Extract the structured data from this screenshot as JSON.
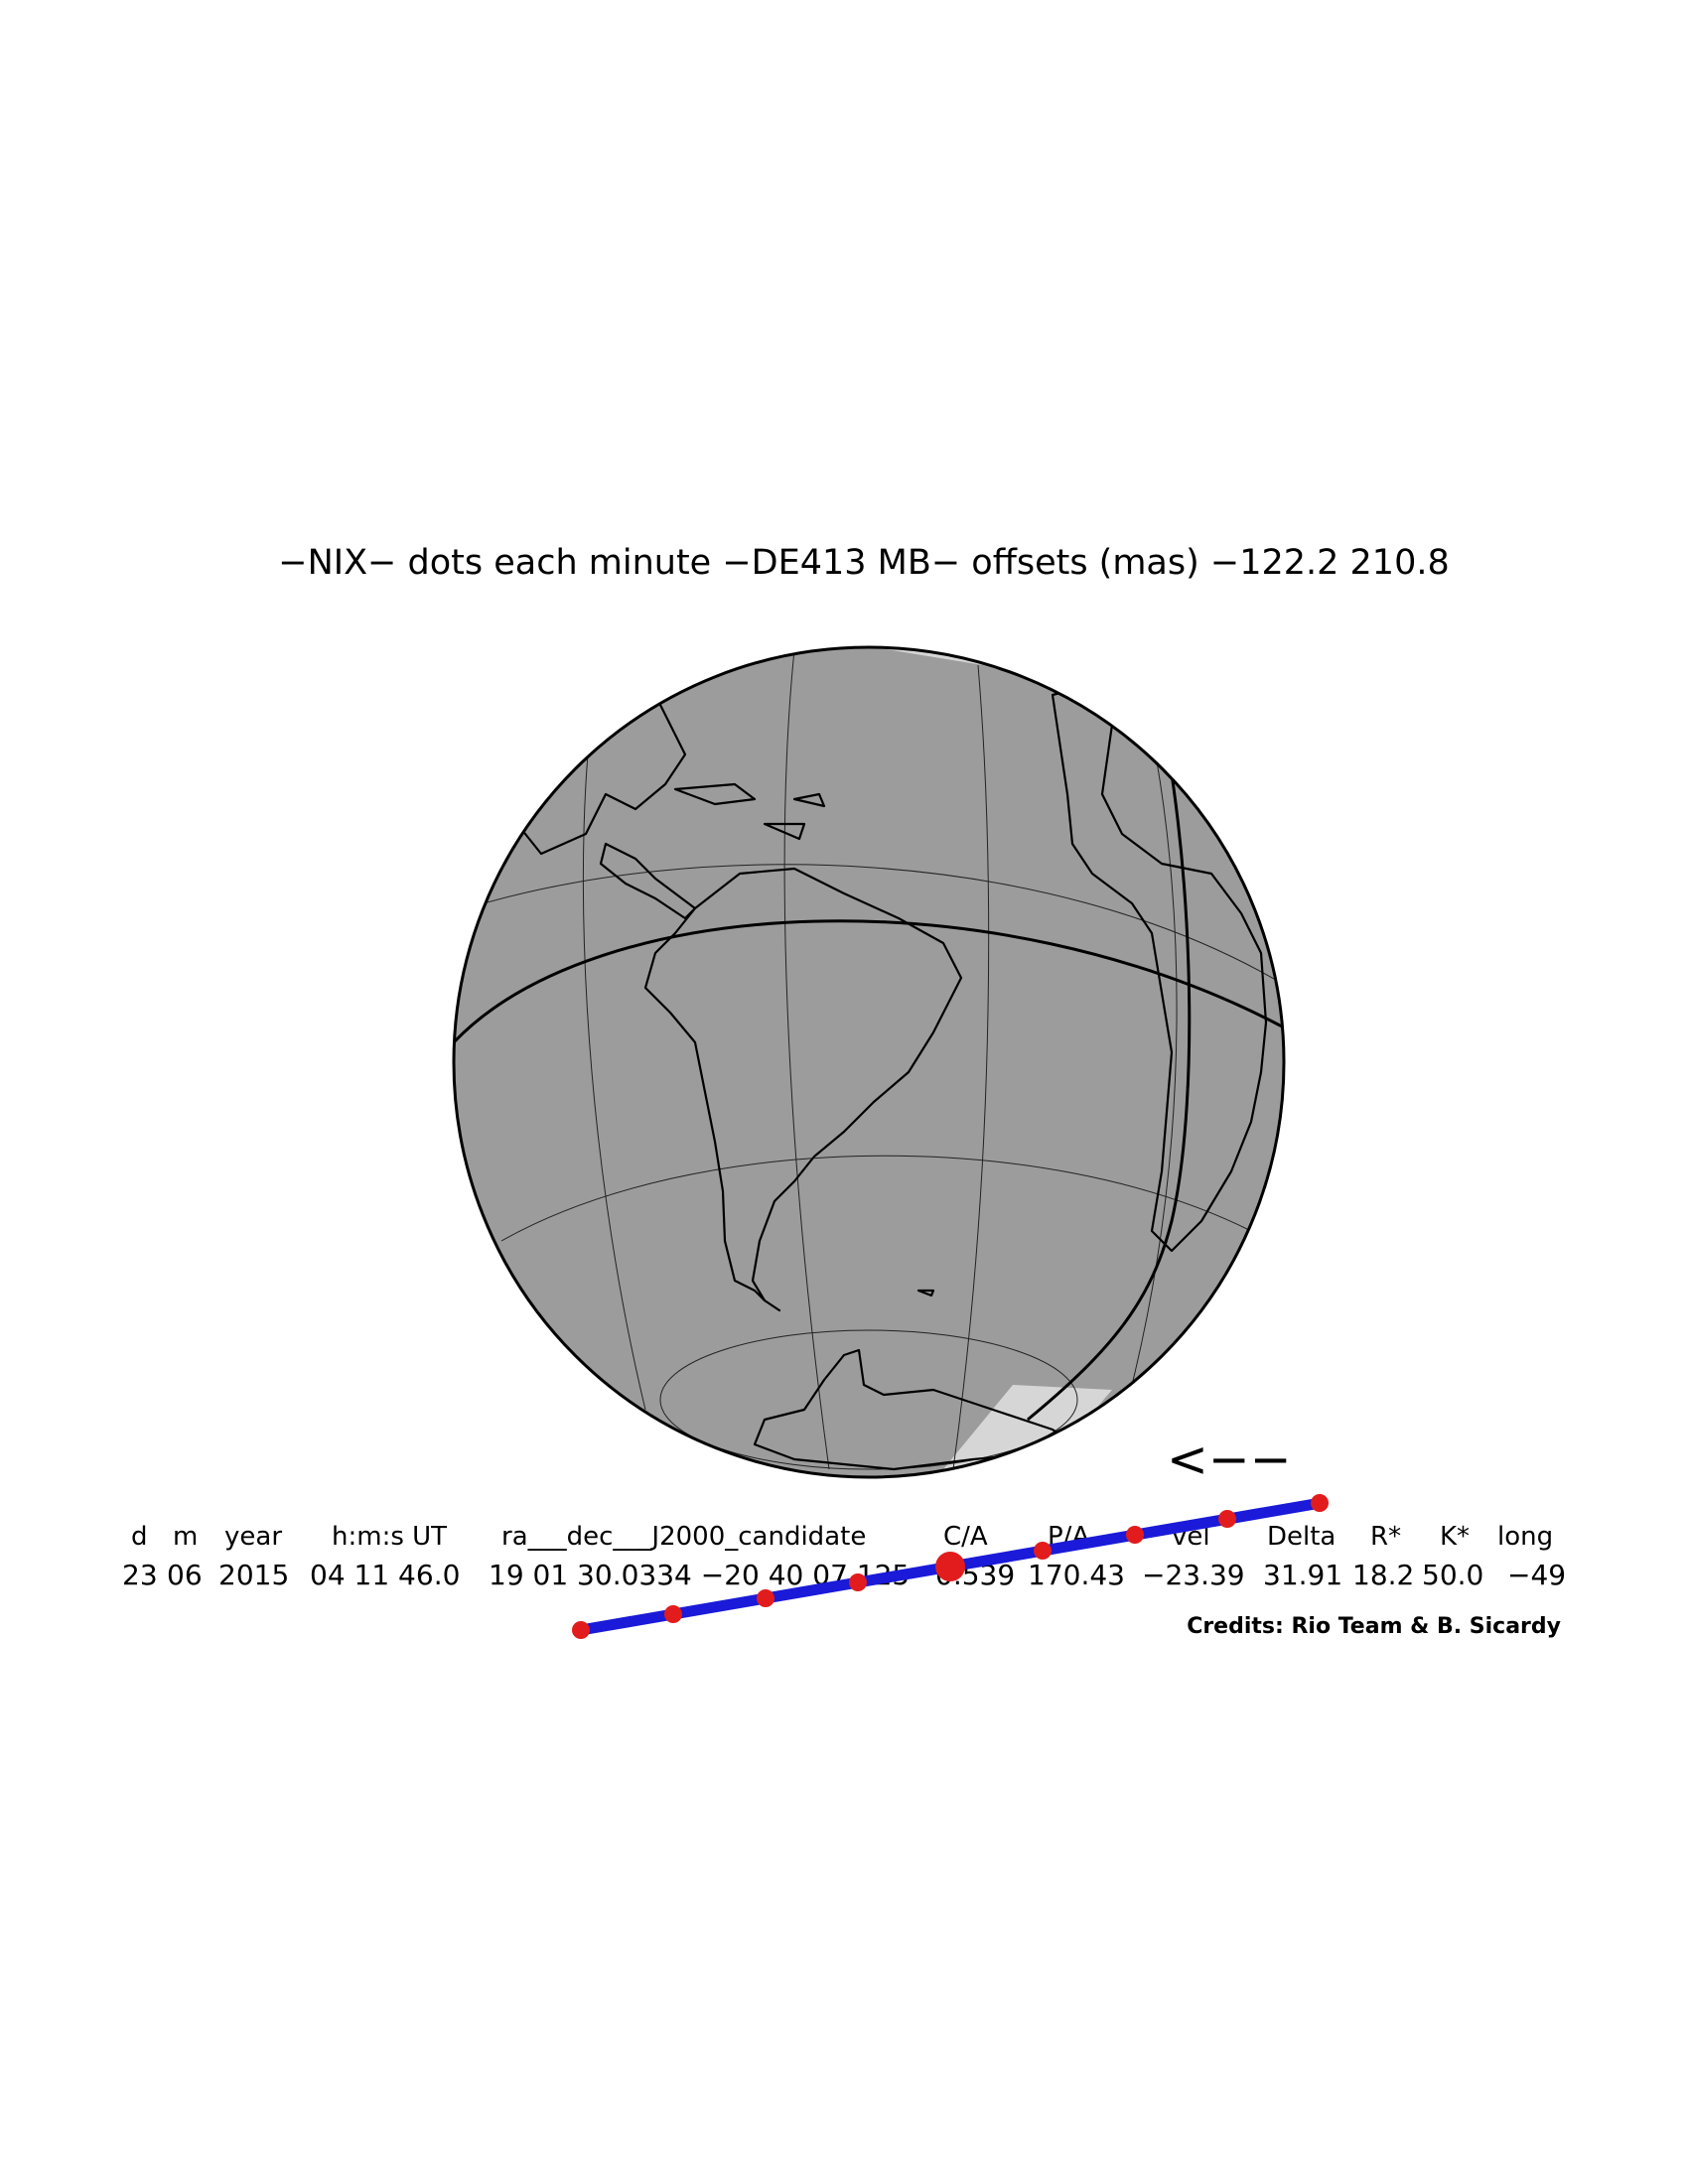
{
  "title": "−NIX− dots each minute −DE413 MB− offsets (mas) −122.2   210.8",
  "direction_arrow": "<−−",
  "table": {
    "headers": [
      "d",
      "m",
      "year",
      "h:m:s UT",
      "ra___dec___J2000_candidate",
      "C/A",
      "P/A",
      "vel",
      "Delta",
      "R*",
      "K*",
      "long"
    ],
    "values": [
      "23",
      "06",
      "2015",
      "04 11 46.0",
      "19 01 30.0334 −20 40 07.125",
      "0.539",
      "170.43",
      "−23.39",
      "31.91",
      "18.2",
      "50.0",
      "−49"
    ]
  },
  "credits": "Credits: Rio Team & B. Sicardy",
  "colors": {
    "night_side": "#9c9c9c",
    "day_side": "#d6d6d6",
    "coastlines": "#000000",
    "shadow_path": "#1a1ad8",
    "minute_dots": "#e21c1c"
  },
  "map": {
    "projection": "orthographic",
    "region": "South America, Atlantic Ocean, West Africa, Antarctica",
    "path_minute_dots": 9,
    "closest_approach_marker": "large red dot"
  }
}
